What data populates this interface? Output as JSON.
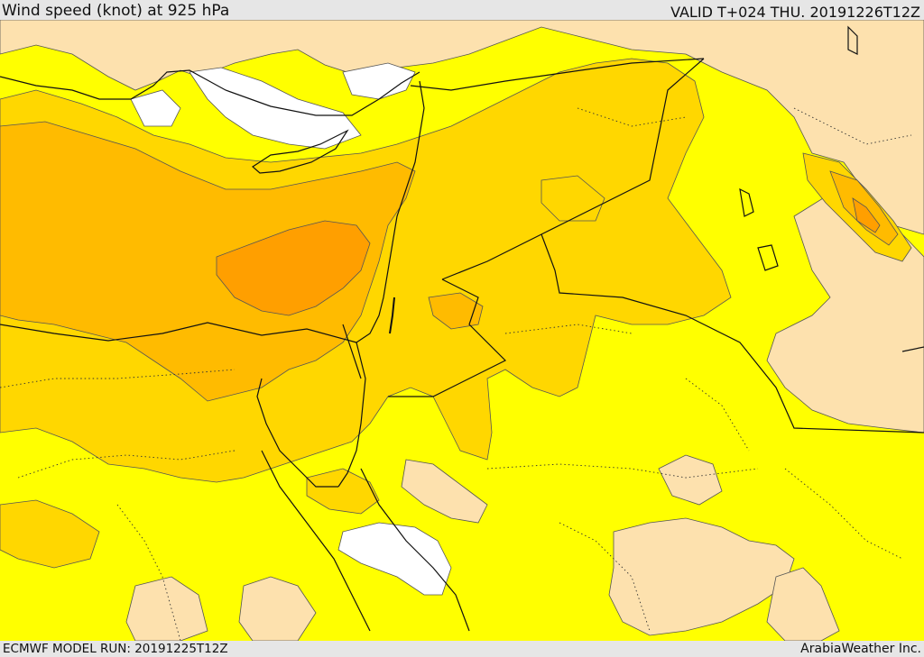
{
  "header": {
    "title": "Wind speed (knot) at 925 hPa",
    "valid_time": "VALID T+024 THU. 20191226T12Z"
  },
  "footer": {
    "model_run": "ECMWF MODEL RUN: 20191225T12Z",
    "credit": "ArabiaWeather Inc."
  },
  "map": {
    "colors": {
      "calm": "#ffffff",
      "light": "#fde1ae",
      "moderate": "#ffff00",
      "fresh": "#ffd700",
      "strong": "#ffbb00",
      "very_strong": "#ff9f00",
      "borders": "#111111",
      "contours": "#555555"
    }
  }
}
